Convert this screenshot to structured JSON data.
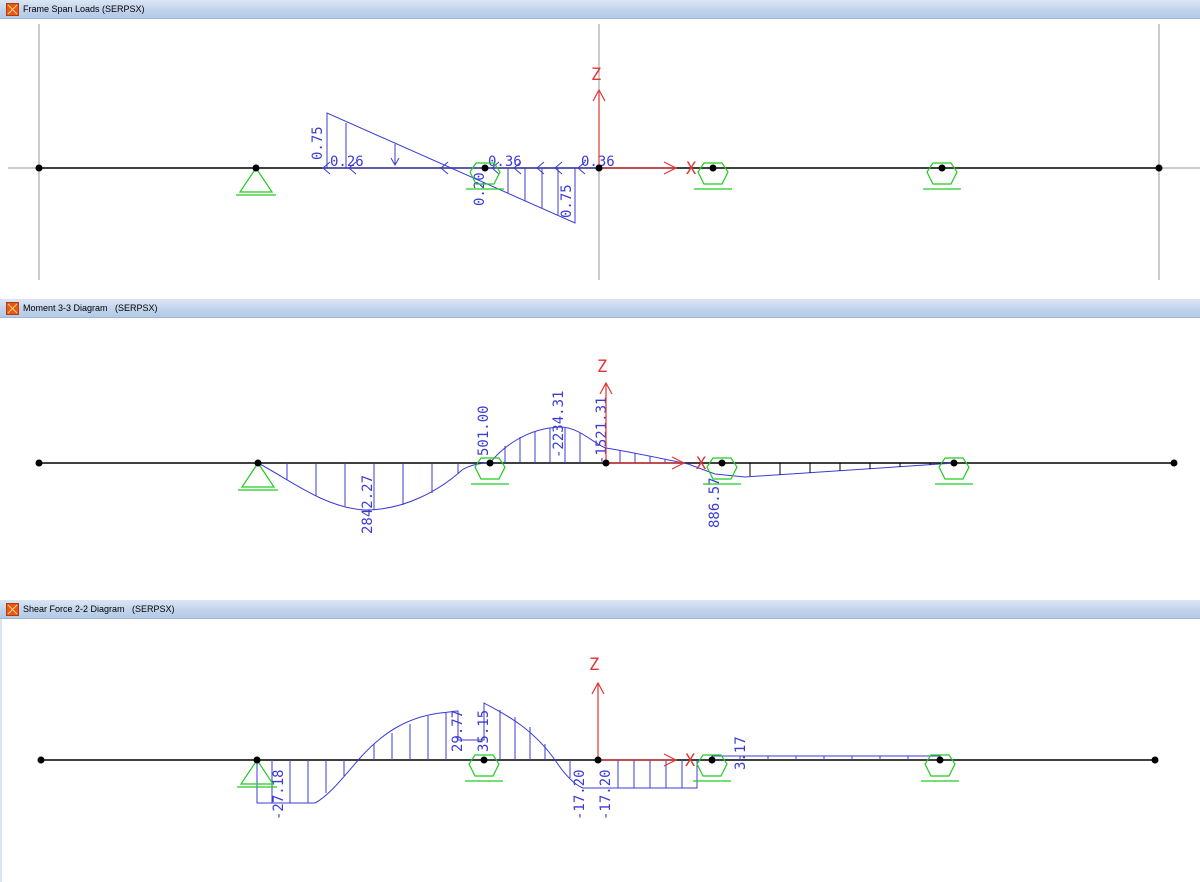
{
  "windows": [
    {
      "title": "Frame Span Loads (SERPSX)",
      "load_labels": [
        "0.75",
        "0.26",
        "0.20",
        "0.36",
        "0.36",
        "0.75"
      ]
    },
    {
      "title": "Moment 3-3 Diagram   (SERPSX)",
      "value_labels": [
        "2842.27",
        "501.00",
        "-2234.31",
        "-1521.31",
        "886.57"
      ]
    },
    {
      "title": "Shear Force 2-2 Diagram   (SERPSX)",
      "value_labels": [
        "-27.18",
        "29.77",
        "35.15",
        "-17.20",
        "-17.20",
        "3.17"
      ]
    }
  ],
  "axes": {
    "z_label": "Z",
    "x_label": "X"
  },
  "colors": {
    "diagram": "#3b3bd6",
    "axis": "#e23333",
    "support": "#22cc22",
    "beam": "#000000",
    "grid": "#9a9a9a",
    "titlebar": "#c2d4ec"
  },
  "icons": {
    "app": "sap2000-app-icon",
    "fixed_support": "pin-support-icon",
    "roller_support": "roller-support-icon"
  }
}
